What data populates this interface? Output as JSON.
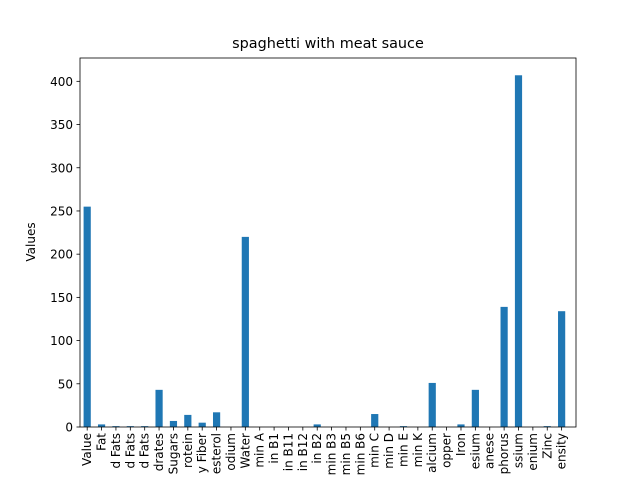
{
  "chart_data": {
    "type": "bar",
    "title": "spaghetti with meat sauce",
    "xlabel": "",
    "ylabel": "Values",
    "ylim": [
      0,
      427
    ],
    "yticks": [
      0,
      50,
      100,
      150,
      200,
      250,
      300,
      350,
      400
    ],
    "grid": false,
    "bar_color": "#1f77b4",
    "categories": [
      "Value",
      "Fat",
      "d Fats",
      "d Fats",
      "d Fats",
      "drates",
      "Sugars",
      "rotein",
      "y Fiber",
      "esterol",
      "odium",
      "Water",
      "min A",
      "in B1",
      "in B11",
      "in B12",
      "in B2",
      "min B3",
      "min B5",
      "min B6",
      "min C",
      "min D",
      "min E",
      "min K",
      "alcium",
      "opper",
      "Iron",
      "esium",
      "anese",
      "phorus",
      "ssium",
      "enium",
      "Zinc",
      "ensity"
    ],
    "values": [
      255,
      3,
      1,
      1,
      1,
      43,
      7,
      14,
      5,
      17,
      0,
      220,
      0,
      0,
      0,
      0,
      3,
      0,
      0,
      0,
      15,
      0,
      1,
      0,
      51,
      0,
      3,
      43,
      0,
      139,
      407,
      0,
      1,
      134
    ]
  }
}
